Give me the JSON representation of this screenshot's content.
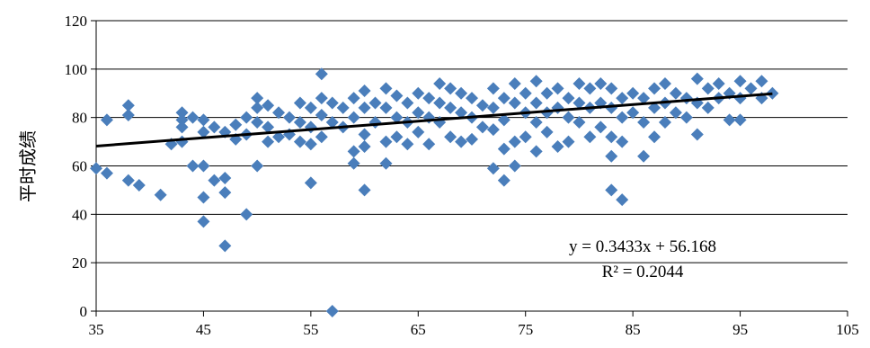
{
  "chart_data": {
    "type": "scatter",
    "title": "",
    "xlabel": "",
    "ylabel": "平时成绩",
    "xlim": [
      35,
      105
    ],
    "ylim": [
      0,
      120
    ],
    "x_ticks": [
      "35",
      "45",
      "55",
      "65",
      "75",
      "85",
      "95",
      "105"
    ],
    "y_ticks": [
      "0",
      "20",
      "40",
      "60",
      "80",
      "100",
      "120"
    ],
    "grid": "horizontal",
    "marker_color": "#4A7EBB",
    "trendline_color": "#000000",
    "trendline": {
      "equation": "y = 0.3433x + 56.168",
      "r_squared": "R² = 0.2044",
      "slope": 0.3433,
      "intercept": 56.168,
      "x_range": [
        35,
        98
      ]
    },
    "points": [
      [
        35,
        59
      ],
      [
        36,
        79
      ],
      [
        36,
        57
      ],
      [
        38,
        85
      ],
      [
        38,
        81
      ],
      [
        38,
        54
      ],
      [
        39,
        52
      ],
      [
        41,
        48
      ],
      [
        42,
        69
      ],
      [
        43,
        82
      ],
      [
        43,
        79
      ],
      [
        43,
        76
      ],
      [
        43,
        70
      ],
      [
        44,
        80
      ],
      [
        44,
        60
      ],
      [
        45,
        79
      ],
      [
        45,
        74
      ],
      [
        45,
        60
      ],
      [
        45,
        47
      ],
      [
        45,
        37
      ],
      [
        46,
        76
      ],
      [
        46,
        54
      ],
      [
        47,
        74
      ],
      [
        47,
        55
      ],
      [
        47,
        49
      ],
      [
        47,
        27
      ],
      [
        48,
        77
      ],
      [
        48,
        71
      ],
      [
        49,
        80
      ],
      [
        49,
        73
      ],
      [
        49,
        40
      ],
      [
        50,
        88
      ],
      [
        50,
        84
      ],
      [
        50,
        78
      ],
      [
        50,
        60
      ],
      [
        51,
        85
      ],
      [
        51,
        76
      ],
      [
        51,
        70
      ],
      [
        52,
        82
      ],
      [
        52,
        72
      ],
      [
        53,
        80
      ],
      [
        53,
        73
      ],
      [
        54,
        86
      ],
      [
        54,
        78
      ],
      [
        54,
        70
      ],
      [
        55,
        84
      ],
      [
        55,
        76
      ],
      [
        55,
        69
      ],
      [
        55,
        53
      ],
      [
        56,
        98
      ],
      [
        56,
        88
      ],
      [
        56,
        81
      ],
      [
        56,
        72
      ],
      [
        57,
        86
      ],
      [
        57,
        78
      ],
      [
        57,
        0
      ],
      [
        58,
        84
      ],
      [
        58,
        76
      ],
      [
        59,
        88
      ],
      [
        59,
        80
      ],
      [
        59,
        66
      ],
      [
        59,
        61
      ],
      [
        60,
        91
      ],
      [
        60,
        84
      ],
      [
        60,
        73
      ],
      [
        60,
        68
      ],
      [
        60,
        50
      ],
      [
        61,
        86
      ],
      [
        61,
        78
      ],
      [
        62,
        92
      ],
      [
        62,
        84
      ],
      [
        62,
        70
      ],
      [
        62,
        61
      ],
      [
        63,
        89
      ],
      [
        63,
        80
      ],
      [
        63,
        72
      ],
      [
        64,
        86
      ],
      [
        64,
        78
      ],
      [
        64,
        69
      ],
      [
        65,
        90
      ],
      [
        65,
        82
      ],
      [
        65,
        74
      ],
      [
        66,
        88
      ],
      [
        66,
        80
      ],
      [
        66,
        69
      ],
      [
        67,
        94
      ],
      [
        67,
        86
      ],
      [
        67,
        78
      ],
      [
        68,
        92
      ],
      [
        68,
        84
      ],
      [
        68,
        72
      ],
      [
        69,
        90
      ],
      [
        69,
        82
      ],
      [
        69,
        70
      ],
      [
        70,
        88
      ],
      [
        70,
        80
      ],
      [
        70,
        71
      ],
      [
        71,
        85
      ],
      [
        71,
        76
      ],
      [
        72,
        92
      ],
      [
        72,
        84
      ],
      [
        72,
        75
      ],
      [
        72,
        59
      ],
      [
        73,
        88
      ],
      [
        73,
        79
      ],
      [
        73,
        67
      ],
      [
        73,
        54
      ],
      [
        74,
        94
      ],
      [
        74,
        86
      ],
      [
        74,
        70
      ],
      [
        74,
        60
      ],
      [
        75,
        90
      ],
      [
        75,
        82
      ],
      [
        75,
        72
      ],
      [
        76,
        95
      ],
      [
        76,
        86
      ],
      [
        76,
        78
      ],
      [
        76,
        66
      ],
      [
        77,
        90
      ],
      [
        77,
        82
      ],
      [
        77,
        74
      ],
      [
        78,
        92
      ],
      [
        78,
        84
      ],
      [
        78,
        68
      ],
      [
        79,
        88
      ],
      [
        79,
        80
      ],
      [
        79,
        70
      ],
      [
        80,
        94
      ],
      [
        80,
        86
      ],
      [
        80,
        78
      ],
      [
        81,
        92
      ],
      [
        81,
        84
      ],
      [
        81,
        72
      ],
      [
        82,
        94
      ],
      [
        82,
        86
      ],
      [
        82,
        76
      ],
      [
        83,
        92
      ],
      [
        83,
        84
      ],
      [
        83,
        72
      ],
      [
        83,
        64
      ],
      [
        83,
        50
      ],
      [
        84,
        88
      ],
      [
        84,
        80
      ],
      [
        84,
        70
      ],
      [
        84,
        46
      ],
      [
        85,
        90
      ],
      [
        85,
        82
      ],
      [
        86,
        88
      ],
      [
        86,
        78
      ],
      [
        86,
        64
      ],
      [
        87,
        92
      ],
      [
        87,
        84
      ],
      [
        87,
        72
      ],
      [
        88,
        94
      ],
      [
        88,
        86
      ],
      [
        88,
        78
      ],
      [
        89,
        90
      ],
      [
        89,
        82
      ],
      [
        90,
        88
      ],
      [
        90,
        80
      ],
      [
        91,
        96
      ],
      [
        91,
        86
      ],
      [
        91,
        73
      ],
      [
        92,
        92
      ],
      [
        92,
        84
      ],
      [
        93,
        94
      ],
      [
        93,
        88
      ],
      [
        94,
        90
      ],
      [
        94,
        79
      ],
      [
        95,
        95
      ],
      [
        95,
        88
      ],
      [
        95,
        79
      ],
      [
        96,
        92
      ],
      [
        97,
        95
      ],
      [
        97,
        88
      ],
      [
        98,
        90
      ]
    ]
  }
}
